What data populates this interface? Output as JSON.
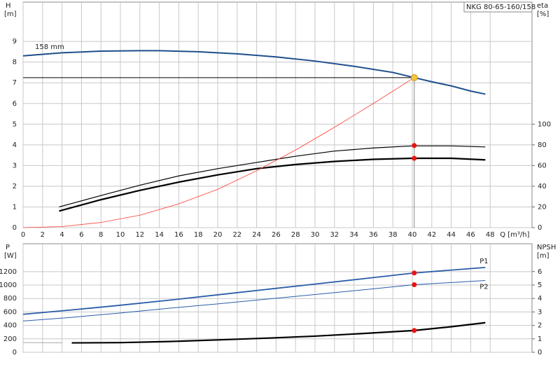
{
  "chart_data": [
    {
      "type": "line",
      "model": "NKG 80-65-160/158",
      "annotation": "158 mm",
      "ylabel": "H",
      "yunit": "[m]",
      "y2label": "eta",
      "y2unit": "[%]",
      "xlabel": "Q [m³/h]",
      "xlim": [
        0,
        52.3
      ],
      "xticks": [
        0,
        2,
        4,
        6,
        8,
        10,
        12,
        14,
        16,
        18,
        20,
        22,
        24,
        26,
        28,
        30,
        32,
        34,
        36,
        38,
        40,
        42,
        44,
        46,
        48
      ],
      "show_xtick_labels": true,
      "ylim": [
        0,
        10.9
      ],
      "yticks": [
        0,
        1,
        2,
        3,
        4,
        5,
        6,
        7,
        8,
        9
      ],
      "y2lim": [
        0,
        218
      ],
      "y2ticks": [
        0,
        20,
        40,
        60,
        80,
        100
      ],
      "grid": true,
      "series": [
        {
          "color": "#1f4e8c",
          "line_width": 2,
          "axis": "y",
          "x": [
            0,
            4,
            8,
            12,
            14,
            18,
            22,
            26,
            30,
            34,
            38,
            40.2,
            42,
            44,
            46,
            47.5
          ],
          "values": [
            8.3,
            8.45,
            8.53,
            8.55,
            8.55,
            8.5,
            8.4,
            8.25,
            8.05,
            7.8,
            7.5,
            7.25,
            7.05,
            6.85,
            6.6,
            6.45
          ]
        },
        {
          "color": "#000000",
          "line_width": 1.2,
          "axis": "y2",
          "x": [
            3.7,
            8,
            12,
            16,
            20,
            24,
            28,
            32,
            36,
            40,
            44,
            47.5
          ],
          "values": [
            20,
            31,
            41,
            50,
            57,
            63,
            69,
            74,
            77,
            79,
            79,
            78
          ]
        },
        {
          "color": "#000000",
          "line_width": 2.2,
          "axis": "y2",
          "x": [
            3.7,
            8,
            12,
            16,
            20,
            24,
            28,
            32,
            36,
            40,
            44,
            47.5
          ],
          "values": [
            16,
            27,
            36,
            44,
            51,
            57,
            61,
            64,
            66,
            67,
            67,
            65.5
          ]
        },
        {
          "color": "#ff3b30",
          "line_width": 0.8,
          "axis": "y",
          "x": [
            0,
            4,
            8,
            12,
            16,
            20,
            24,
            28,
            32,
            36,
            40.2
          ],
          "values": [
            0,
            0.05,
            0.25,
            0.6,
            1.15,
            1.85,
            2.75,
            3.75,
            4.85,
            6.0,
            7.25
          ]
        }
      ],
      "duty_point": {
        "x": 40.2,
        "value": 7.25,
        "color": "#f7c23c"
      },
      "points": [
        {
          "x": 40.2,
          "value": 79.4,
          "axis": "y2",
          "color": "#ee1111"
        },
        {
          "x": 40.2,
          "value": 67,
          "axis": "y2",
          "color": "#ee1111"
        }
      ]
    },
    {
      "type": "line",
      "ylabel": "P",
      "yunit": "[W]",
      "y2label": "NPSH",
      "y2unit": "[m]",
      "xlim": [
        0,
        52.3
      ],
      "xticks": [
        0,
        2,
        4,
        6,
        8,
        10,
        12,
        14,
        16,
        18,
        20,
        22,
        24,
        26,
        28,
        30,
        32,
        34,
        36,
        38,
        40,
        42,
        44,
        46,
        48
      ],
      "show_xtick_labels": false,
      "ylim": [
        0,
        1615
      ],
      "yticks": [
        0,
        200,
        400,
        600,
        800,
        1000,
        1200
      ],
      "y2lim": [
        0,
        8.07
      ],
      "y2ticks": [
        0,
        1,
        2,
        3,
        4,
        5,
        6
      ],
      "grid": true,
      "series": [
        {
          "name": "P1",
          "color": "#2a5ca8",
          "line_width": 1.8,
          "axis": "y",
          "x": [
            0,
            5,
            10,
            15,
            20,
            25,
            30,
            35,
            40.2,
            47.5
          ],
          "values": [
            565,
            630,
            700,
            775,
            855,
            935,
            1015,
            1095,
            1180,
            1262
          ]
        },
        {
          "name": "P2",
          "color": "#2a5ca8",
          "line_width": 1,
          "axis": "y",
          "x": [
            0,
            5,
            10,
            15,
            20,
            25,
            30,
            35,
            40.2,
            47.5
          ],
          "values": [
            465,
            520,
            585,
            655,
            720,
            790,
            860,
            930,
            1005,
            1068
          ]
        },
        {
          "color": "#000000",
          "line_width": 2.2,
          "axis": "y2",
          "x": [
            5,
            10,
            15,
            20,
            25,
            30,
            35,
            40.2,
            44,
            47.5
          ],
          "values": [
            0.7,
            0.72,
            0.8,
            0.92,
            1.05,
            1.2,
            1.4,
            1.62,
            1.9,
            2.2
          ]
        },
        {
          "color": "#aaaaaa",
          "line_width": 1,
          "axis": "y2",
          "x": [
            0,
            4
          ],
          "values": [
            0.72,
            0.7
          ]
        }
      ],
      "points": [
        {
          "x": 40.2,
          "value": 1180,
          "axis": "y",
          "color": "#ee1111"
        },
        {
          "x": 40.2,
          "value": 1005,
          "axis": "y",
          "color": "#ee1111"
        },
        {
          "x": 40.2,
          "value": 1.62,
          "axis": "y2",
          "color": "#ee1111"
        }
      ]
    }
  ]
}
